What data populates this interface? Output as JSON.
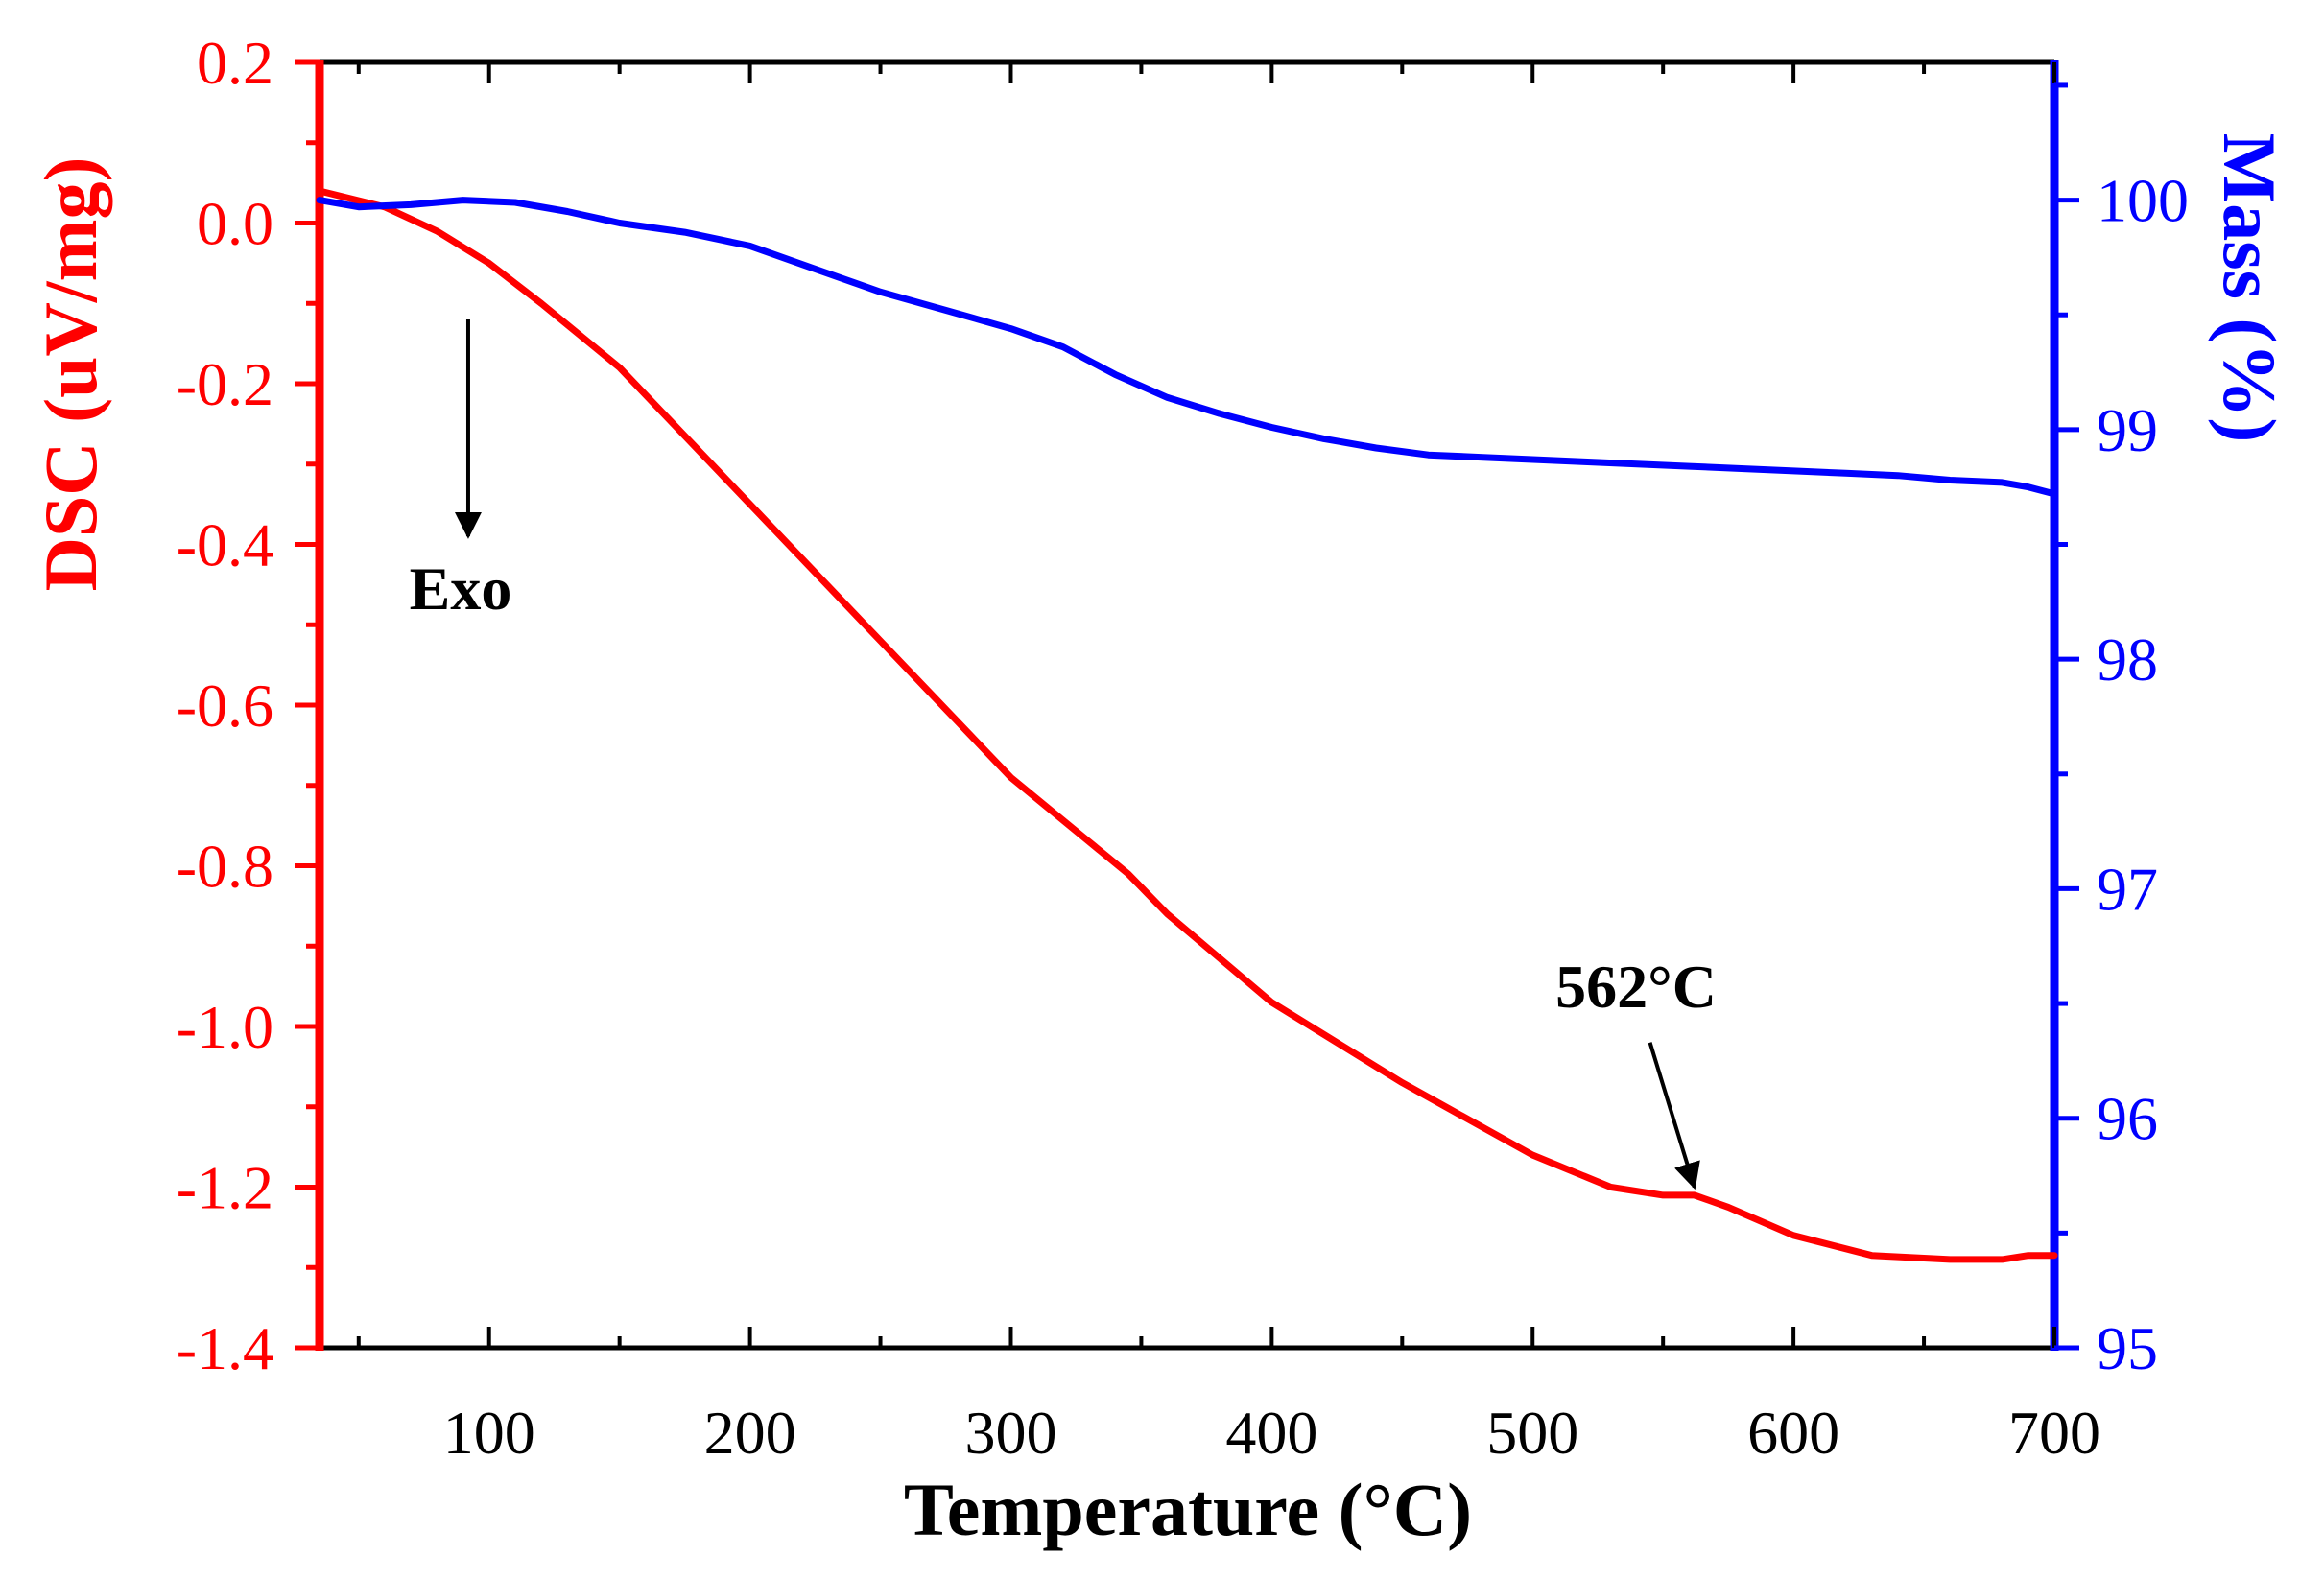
{
  "chart_data": {
    "type": "line",
    "title": "",
    "xlabel": "Temperature (°C)",
    "ylabel_left": "DSC (uV/mg)",
    "ylabel_right": "Mass (%)",
    "xlim": [
      35,
      700
    ],
    "ylim_left": [
      -1.4,
      0.2
    ],
    "ylim_right": [
      95,
      100.6
    ],
    "x_ticks": [
      100,
      200,
      300,
      400,
      500,
      600,
      700
    ],
    "x_tick_labels": [
      "100",
      "200",
      "300",
      "400",
      "500",
      "600",
      "700"
    ],
    "y_left_ticks": [
      0.2,
      0.0,
      -0.2,
      -0.4,
      -0.6,
      -0.8,
      -1.0,
      -1.2,
      -1.4
    ],
    "y_left_tick_labels": [
      "0.2",
      "0.0",
      "-0.2",
      "-0.4",
      "-0.6",
      "-0.8",
      "-1.0",
      "-1.2",
      "-1.4"
    ],
    "y_right_ticks": [
      95,
      96,
      97,
      98,
      99,
      100
    ],
    "y_right_tick_labels": [
      "95",
      "96",
      "97",
      "98",
      "99",
      "100"
    ],
    "grid": false,
    "colors": {
      "dsc": "#ff0000",
      "mass": "#0000ff",
      "annotation": "#000000",
      "frame": "#000000"
    },
    "series": [
      {
        "name": "DSC",
        "axis": "left",
        "color": "#ff0000",
        "x": [
          35,
          60,
          80,
          100,
          120,
          150,
          200,
          250,
          300,
          330,
          345,
          360,
          400,
          450,
          500,
          530,
          550,
          562,
          575,
          600,
          630,
          660,
          680,
          690,
          700
        ],
        "y": [
          0.04,
          0.02,
          -0.01,
          -0.05,
          -0.1,
          -0.18,
          -0.35,
          -0.52,
          -0.69,
          -0.77,
          -0.81,
          -0.86,
          -0.97,
          -1.07,
          -1.16,
          -1.2,
          -1.21,
          -1.21,
          -1.225,
          -1.26,
          -1.285,
          -1.29,
          -1.29,
          -1.285,
          -1.285
        ]
      },
      {
        "name": "Mass",
        "axis": "right",
        "color": "#0000ff",
        "x": [
          35,
          50,
          70,
          90,
          110,
          130,
          150,
          175,
          200,
          225,
          250,
          275,
          300,
          320,
          340,
          360,
          380,
          400,
          420,
          440,
          460,
          480,
          500,
          520,
          540,
          560,
          580,
          600,
          620,
          640,
          660,
          680,
          690,
          700
        ],
        "y": [
          100.0,
          99.97,
          99.98,
          100.0,
          99.99,
          99.95,
          99.9,
          99.86,
          99.8,
          99.7,
          99.6,
          99.52,
          99.44,
          99.36,
          99.24,
          99.14,
          99.07,
          99.01,
          98.96,
          98.92,
          98.89,
          98.88,
          98.87,
          98.86,
          98.85,
          98.84,
          98.83,
          98.82,
          98.81,
          98.8,
          98.78,
          98.77,
          98.75,
          98.72
        ]
      }
    ],
    "annotations": [
      {
        "name": "exo-label",
        "text": "Exo",
        "arrow_from": [
          92,
          -0.12
        ],
        "arrow_to": [
          92,
          -0.39
        ]
      },
      {
        "name": "peak-label",
        "text": "562°C",
        "arrow_from": [
          545,
          -1.02
        ],
        "arrow_to": [
          562,
          -1.2
        ]
      }
    ]
  }
}
